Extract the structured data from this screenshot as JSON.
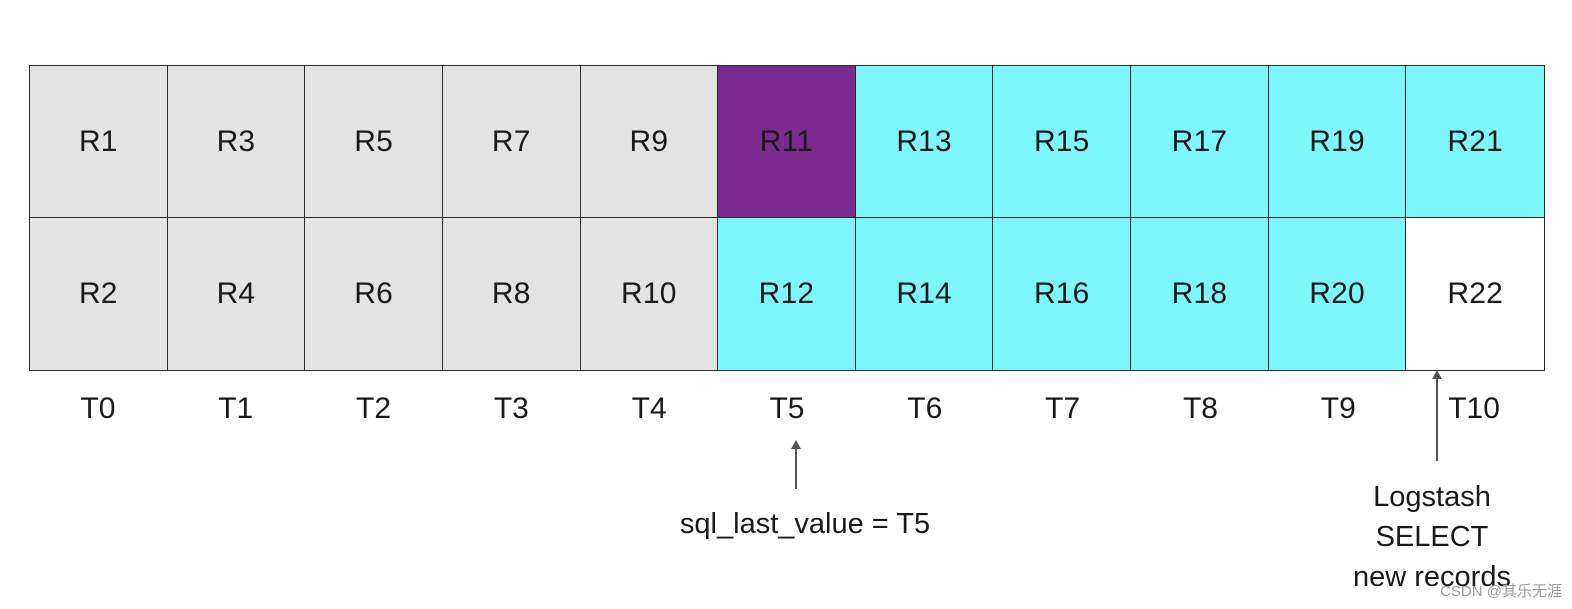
{
  "colors": {
    "processed": "#e3e3e3",
    "last_value": "#7b2b8f",
    "pending": "#7ef7fb",
    "new_record": "#ffffff",
    "border": "#2b2b2b"
  },
  "columns": [
    {
      "top": "R1",
      "bottom": "R2",
      "time": "T0",
      "top_state": "processed",
      "bottom_state": "processed"
    },
    {
      "top": "R3",
      "bottom": "R4",
      "time": "T1",
      "top_state": "processed",
      "bottom_state": "processed"
    },
    {
      "top": "R5",
      "bottom": "R6",
      "time": "T2",
      "top_state": "processed",
      "bottom_state": "processed"
    },
    {
      "top": "R7",
      "bottom": "R8",
      "time": "T3",
      "top_state": "processed",
      "bottom_state": "processed"
    },
    {
      "top": "R9",
      "bottom": "R10",
      "time": "T4",
      "top_state": "processed",
      "bottom_state": "processed"
    },
    {
      "top": "R11",
      "bottom": "R12",
      "time": "T5",
      "top_state": "last_value",
      "bottom_state": "pending"
    },
    {
      "top": "R13",
      "bottom": "R14",
      "time": "T6",
      "top_state": "pending",
      "bottom_state": "pending"
    },
    {
      "top": "R15",
      "bottom": "R16",
      "time": "T7",
      "top_state": "pending",
      "bottom_state": "pending"
    },
    {
      "top": "R17",
      "bottom": "R18",
      "time": "T8",
      "top_state": "pending",
      "bottom_state": "pending"
    },
    {
      "top": "R19",
      "bottom": "R20",
      "time": "T9",
      "top_state": "pending",
      "bottom_state": "pending"
    },
    {
      "top": "R21",
      "bottom": "R22",
      "time": "T10",
      "top_state": "pending",
      "bottom_state": "new_record"
    }
  ],
  "annotations": {
    "last_value_caption": "sql_last_value = T5",
    "logstash_line1": "Logstash",
    "logstash_line2": "SELECT",
    "logstash_line3": "new records"
  },
  "watermark": "CSDN @其乐无涯"
}
